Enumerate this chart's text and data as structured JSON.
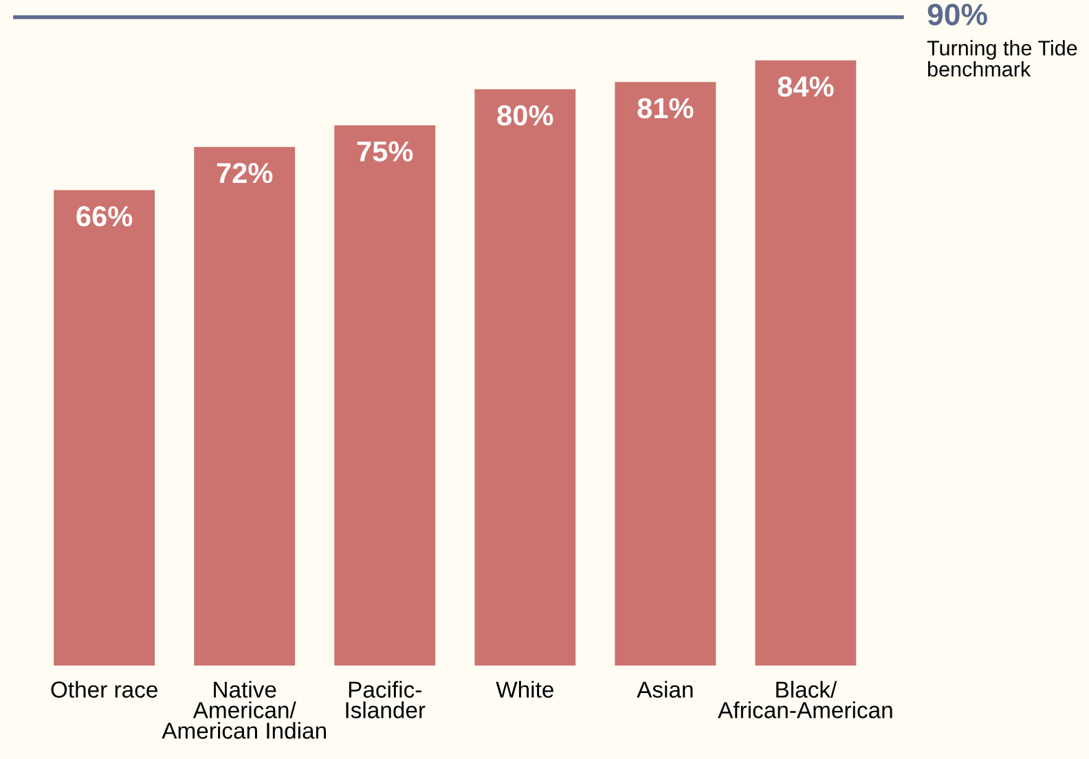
{
  "chart_data": {
    "type": "bar",
    "categories": [
      "Other race",
      "Native\nAmerican/\nAmerican Indian",
      "Pacific-\nIslander",
      "White",
      "Asian",
      "Black/\nAfrican-American"
    ],
    "values": [
      66,
      72,
      75,
      80,
      81,
      84
    ],
    "value_labels": [
      "66%",
      "72%",
      "75%",
      "80%",
      "81%",
      "84%"
    ],
    "color": "#cc7370",
    "grid": false,
    "legend": false,
    "ref_lines": [
      {
        "axis": "y",
        "value": 90,
        "label": "90%",
        "color": "#5b6a8e"
      }
    ],
    "annotations": [
      "Turning the Tide\nbenchmark"
    ]
  }
}
